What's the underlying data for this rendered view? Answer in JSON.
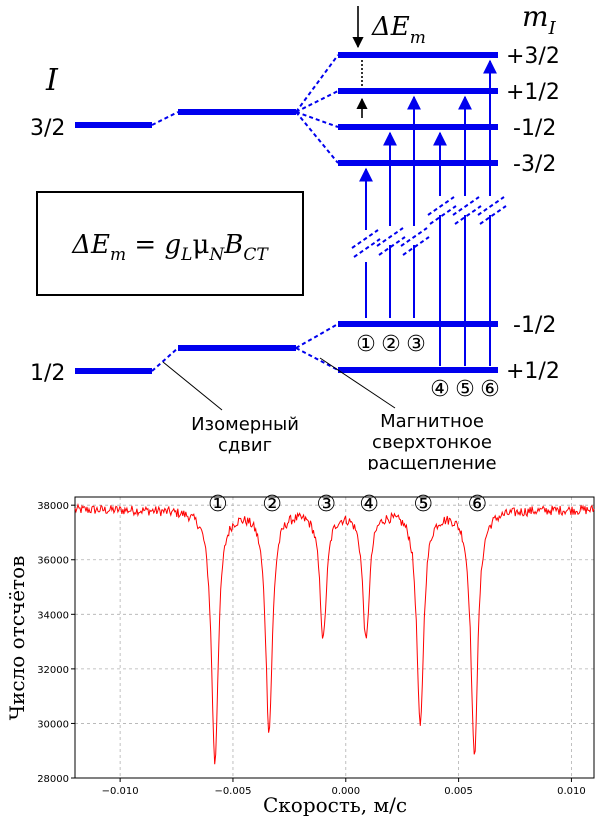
{
  "diagram": {
    "spin_symbol": "I",
    "mI_base": "m",
    "mI_sub": "I",
    "excited_spin": "3/2",
    "ground_spin": "1/2",
    "delta_E_base": "ΔE",
    "delta_E_sub": "m",
    "excited_mI": [
      "+3/2",
      "+1/2",
      "-1/2",
      "-3/2"
    ],
    "ground_mI": [
      "-1/2",
      "+1/2"
    ],
    "formula": {
      "lhs_base": "ΔE",
      "lhs_sub": "m",
      "eq": " = ",
      "g": "g",
      "g_sub": "L",
      "mu": "μ",
      "mu_sub": "N",
      "B": "B",
      "B_sub": "CT"
    },
    "transition_labels_left": [
      "①",
      "②",
      "③"
    ],
    "transition_labels_right": [
      "④",
      "⑤",
      "⑥"
    ],
    "isomer_shift_label": [
      "Изомерный",
      "сдвиг"
    ],
    "hyperfine_label": [
      "Магнитное",
      "сверхтонкое",
      "расщепление"
    ],
    "line_color": "#0000ee"
  },
  "chart_data": {
    "type": "line",
    "xlabel": "Скорость, м/с",
    "ylabel": "Число отсчётов",
    "xlim": [
      -0.012,
      0.011
    ],
    "ylim": [
      28000,
      38300
    ],
    "xticks": [
      -0.01,
      -0.005,
      0.0,
      0.005,
      0.01
    ],
    "xtick_labels": [
      "−0.010",
      "−0.005",
      "0.000",
      "0.005",
      "0.010"
    ],
    "yticks": [
      28000,
      30000,
      32000,
      34000,
      36000,
      38000
    ],
    "ytick_labels": [
      "28000",
      "30000",
      "32000",
      "34000",
      "36000",
      "38000"
    ],
    "grid": true,
    "baseline": 37850,
    "noise": 180,
    "line_color": "#ff0000",
    "peaks": [
      {
        "label": "①",
        "x": -0.0058,
        "min": 28600
      },
      {
        "label": "②",
        "x": -0.0034,
        "min": 29800
      },
      {
        "label": "③",
        "x": -0.001,
        "min": 33200
      },
      {
        "label": "④",
        "x": 0.0009,
        "min": 33100
      },
      {
        "label": "⑤",
        "x": 0.0033,
        "min": 29900
      },
      {
        "label": "⑥",
        "x": 0.0057,
        "min": 28800
      }
    ]
  }
}
